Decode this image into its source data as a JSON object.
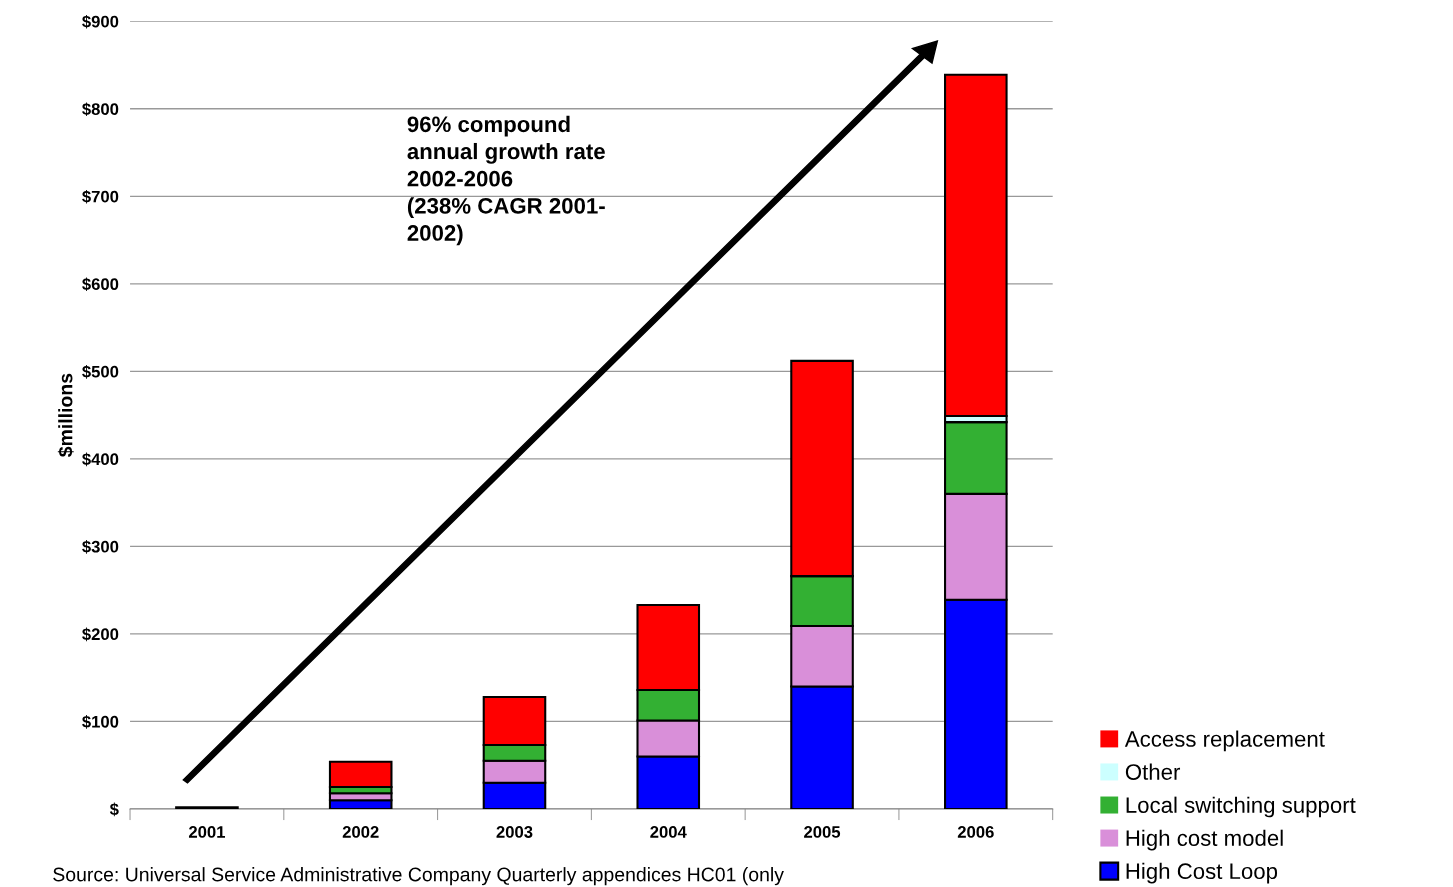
{
  "chart_data": {
    "type": "bar",
    "stacked": true,
    "ylabel": "$millions",
    "categories": [
      "2001",
      "2002",
      "2003",
      "2004",
      "2005",
      "2006"
    ],
    "series": [
      {
        "name": "High Cost Loop",
        "color": "#0000ff",
        "values": [
          2,
          10,
          30,
          60,
          140,
          239
        ]
      },
      {
        "name": "High cost model",
        "color": "#d98fd9",
        "values": [
          0,
          8,
          25,
          41,
          69,
          121
        ]
      },
      {
        "name": "Local switching support",
        "color": "#33b033",
        "values": [
          0,
          7,
          18,
          35,
          57,
          82
        ]
      },
      {
        "name": "Other",
        "color": "#ccffff",
        "values": [
          0,
          0,
          0,
          0,
          0,
          7
        ]
      },
      {
        "name": "Access replacement",
        "color": "#ff0000",
        "values": [
          0,
          29,
          55,
          97,
          246,
          390
        ]
      }
    ],
    "ylim": [
      0,
      900
    ],
    "yticks": [
      {
        "value": 0,
        "label": "$"
      },
      {
        "value": 100,
        "label": "$100"
      },
      {
        "value": 200,
        "label": "$200"
      },
      {
        "value": 300,
        "label": "$300"
      },
      {
        "value": 400,
        "label": "$400"
      },
      {
        "value": 500,
        "label": "$500"
      },
      {
        "value": 600,
        "label": "$600"
      },
      {
        "value": 700,
        "label": "$700"
      },
      {
        "value": 800,
        "label": "$800"
      },
      {
        "value": 900,
        "label": "$900"
      }
    ],
    "grid": "y",
    "legend": "bottom right",
    "annotations": [
      "96% compound\nannual growth rate\n2002-2006\n(238% CAGR 2001-\n2002)",
      "Source: Universal Service Administrative Company Quarterly appendices HC01 (only"
    ]
  }
}
